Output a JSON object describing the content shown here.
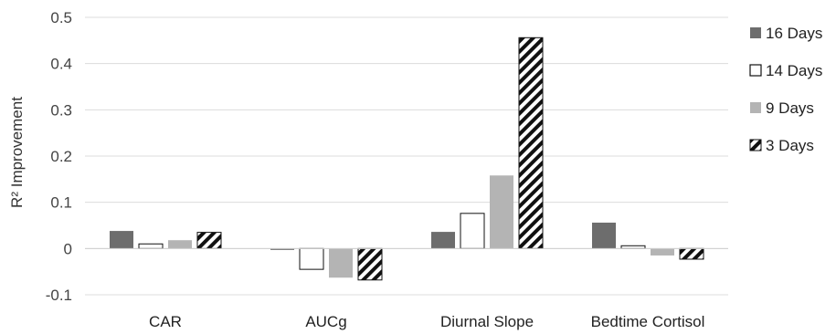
{
  "chart_data": {
    "type": "bar",
    "title": "",
    "xlabel": "",
    "ylabel": "R² Improvement",
    "ylim": [
      -0.1,
      0.5
    ],
    "yticks": [
      -0.1,
      0,
      0.1,
      0.2,
      0.3,
      0.4,
      0.5
    ],
    "ytick_labels": [
      "-0.1",
      "0",
      "0.1",
      "0.2",
      "0.3",
      "0.4",
      "0.5"
    ],
    "grid": true,
    "legend_position": "right",
    "categories": [
      "CAR",
      "AUCg",
      "Diurnal Slope",
      "Bedtime Cortisol"
    ],
    "series": [
      {
        "name": "16 Days",
        "values": [
          0.038,
          -0.003,
          0.036,
          0.056
        ],
        "color": "#6d6d6d",
        "pattern": "solid"
      },
      {
        "name": "14 Days",
        "values": [
          0.01,
          -0.045,
          0.076,
          0.006
        ],
        "color": "#ffffff",
        "pattern": "outline"
      },
      {
        "name": "9 Days",
        "values": [
          0.018,
          -0.063,
          0.158,
          -0.015
        ],
        "color": "#b4b4b4",
        "pattern": "solid"
      },
      {
        "name": "3 Days",
        "values": [
          0.035,
          -0.068,
          0.456,
          -0.023
        ],
        "color": "#000000",
        "pattern": "diagonal-hatch"
      }
    ]
  }
}
